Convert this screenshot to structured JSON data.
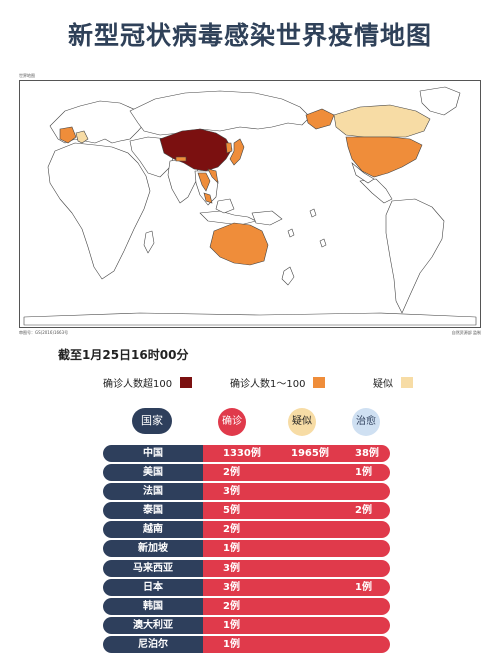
{
  "title": "新型冠状病毒感染世界疫情地图",
  "map": {
    "caption_top_left": "世界地图",
    "caption_bottom_left": "审图号：GS(2016)1663号",
    "caption_bottom_right": "自然资源部 监制",
    "colors": {
      "over_100": "#7b1010",
      "range_1_100": "#ef8d3a",
      "suspected": "#f7dca5",
      "none": "#ffffff"
    }
  },
  "date_label": "截至1月25日16时00分",
  "legend": [
    {
      "label": "确诊人数超100",
      "color": "#7b1010"
    },
    {
      "label": "确诊人数1～100",
      "color": "#ef8d3a"
    },
    {
      "label": "疑似",
      "color": "#f7dca5"
    }
  ],
  "table": {
    "headers": {
      "country": "国家",
      "confirmed": "确诊",
      "suspected": "疑似",
      "cured": "治愈"
    },
    "header_colors": {
      "country": "#2e3f5c",
      "confirmed": "#e03a4b",
      "suspected": "#f7dca5",
      "cured": "#cfe0f2"
    },
    "rows": [
      {
        "country": "中国",
        "confirmed": "1330例",
        "suspected": "1965例",
        "cured": "38例"
      },
      {
        "country": "美国",
        "confirmed": "2例",
        "suspected": "",
        "cured": "1例"
      },
      {
        "country": "法国",
        "confirmed": "3例",
        "suspected": "",
        "cured": ""
      },
      {
        "country": "泰国",
        "confirmed": "5例",
        "suspected": "",
        "cured": "2例"
      },
      {
        "country": "越南",
        "confirmed": "2例",
        "suspected": "",
        "cured": ""
      },
      {
        "country": "新加坡",
        "confirmed": "1例",
        "suspected": "",
        "cured": ""
      },
      {
        "country": "马来西亚",
        "confirmed": "3例",
        "suspected": "",
        "cured": ""
      },
      {
        "country": "日本",
        "confirmed": "3例",
        "suspected": "",
        "cured": "1例"
      },
      {
        "country": "韩国",
        "confirmed": "2例",
        "suspected": "",
        "cured": ""
      },
      {
        "country": "澳大利亚",
        "confirmed": "1例",
        "suspected": "",
        "cured": ""
      },
      {
        "country": "尼泊尔",
        "confirmed": "1例",
        "suspected": "",
        "cured": ""
      }
    ]
  }
}
